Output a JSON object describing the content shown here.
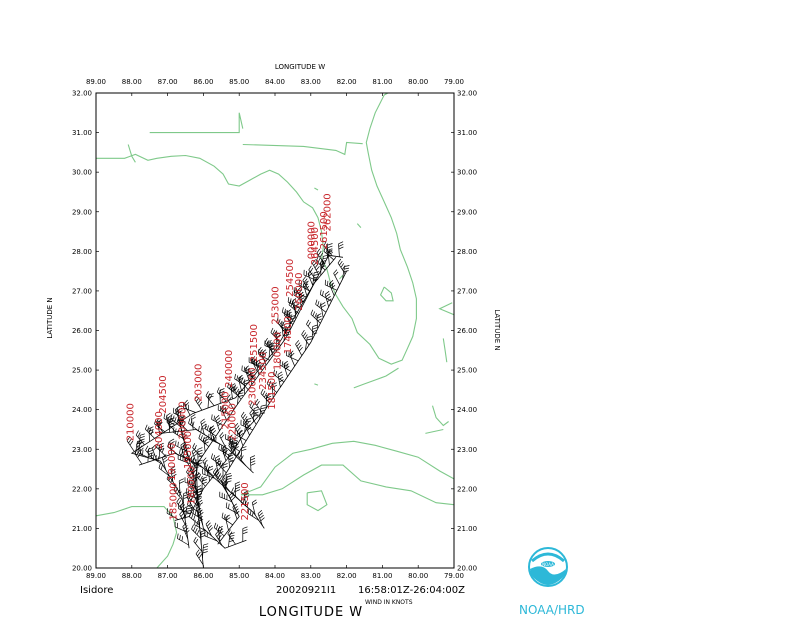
{
  "map": {
    "top_axis_title": "LONGITUDE   W",
    "bottom_axis_title": "LONGITUDE   W",
    "left_axis_title": "LATITUDE   N",
    "right_axis_title": "LATITUDE   N",
    "lon_ticks": [
      "89.00",
      "88.00",
      "87.00",
      "86.00",
      "85.00",
      "84.00",
      "83.00",
      "82.00",
      "81.00",
      "80.00",
      "79.00"
    ],
    "lat_ticks": [
      "32.00",
      "31.00",
      "30.00",
      "29.00",
      "28.00",
      "27.00",
      "26.00",
      "25.00",
      "24.00",
      "23.00",
      "22.00",
      "21.00",
      "20.00"
    ],
    "storm_name": "Isidore",
    "date": "20020921I1",
    "time_range": "16:58:01Z-26:04:00Z",
    "units_note": "WIND IN KNOTS",
    "organization": "NOAA/HRD",
    "extent": {
      "lon_min": -89,
      "lon_max": -79,
      "lat_min": 20,
      "lat_max": 32
    },
    "colors": {
      "coast": "#7fc98a",
      "labels": "#c8262b",
      "logo": "#2db8d8"
    }
  },
  "time_labels": [
    {
      "text": "210000",
      "lon": -87.95,
      "lat": 23.2
    },
    {
      "text": "204500",
      "lon": -87.05,
      "lat": 23.9
    },
    {
      "text": "204000",
      "lon": -87.15,
      "lat": 23.0
    },
    {
      "text": "203000",
      "lon": -86.05,
      "lat": 24.2
    },
    {
      "text": "200000",
      "lon": -86.5,
      "lat": 23.25
    },
    {
      "text": "195000",
      "lon": -86.35,
      "lat": 22.5
    },
    {
      "text": "190000",
      "lon": -86.8,
      "lat": 22.2
    },
    {
      "text": "185000",
      "lon": -86.75,
      "lat": 21.2
    },
    {
      "text": "180000",
      "lon": -86.25,
      "lat": 21.6
    },
    {
      "text": "215000",
      "lon": -85.3,
      "lat": 23.5
    },
    {
      "text": "220000",
      "lon": -85.1,
      "lat": 23.2
    },
    {
      "text": "221500",
      "lon": -84.75,
      "lat": 21.2
    },
    {
      "text": "230000",
      "lon": -84.55,
      "lat": 24.1
    },
    {
      "text": "234500",
      "lon": -84.25,
      "lat": 24.5
    },
    {
      "text": "240000",
      "lon": -85.2,
      "lat": 24.55
    },
    {
      "text": "251500",
      "lon": -84.5,
      "lat": 25.2
    },
    {
      "text": "253000",
      "lon": -83.9,
      "lat": 26.15
    },
    {
      "text": "254500",
      "lon": -83.5,
      "lat": 26.85
    },
    {
      "text": "260000",
      "lon": -83.25,
      "lat": 26.5
    },
    {
      "text": "264500",
      "lon": -82.8,
      "lat": 27.65
    },
    {
      "text": "261500",
      "lon": -82.55,
      "lat": 28.05
    },
    {
      "text": "262000",
      "lon": -82.45,
      "lat": 28.5
    },
    {
      "text": "000000",
      "lon": -82.9,
      "lat": 27.8
    },
    {
      "text": "174500",
      "lon": -83.55,
      "lat": 25.4
    },
    {
      "text": "180000",
      "lon": -83.85,
      "lat": 25.0
    },
    {
      "text": "181500",
      "lon": -84.0,
      "lat": 24.0
    }
  ],
  "tracks": [
    {
      "points": [
        [
          -86.0,
          20.0
        ],
        [
          -86.15,
          21.5
        ],
        [
          -86.2,
          22.6
        ],
        [
          -85.0,
          24.2
        ],
        [
          -83.7,
          25.8
        ],
        [
          -82.5,
          27.9
        ],
        [
          -82.1,
          27.85
        ]
      ]
    },
    {
      "points": [
        [
          -86.4,
          20.5
        ],
        [
          -86.6,
          21.8
        ],
        [
          -87.2,
          22.7
        ],
        [
          -88.0,
          22.9
        ],
        [
          -86.3,
          23.9
        ],
        [
          -85.1,
          24.3
        ],
        [
          -84.0,
          25.5
        ],
        [
          -82.9,
          27.2
        ],
        [
          -82.3,
          27.85
        ]
      ]
    },
    {
      "points": [
        [
          -85.6,
          20.6
        ],
        [
          -85.0,
          21.3
        ],
        [
          -85.5,
          22.2
        ],
        [
          -84.2,
          24.1
        ],
        [
          -83.0,
          25.7
        ],
        [
          -82.0,
          27.5
        ]
      ]
    },
    {
      "points": [
        [
          -87.8,
          22.6
        ],
        [
          -86.8,
          22.9
        ],
        [
          -86.1,
          22.6
        ],
        [
          -85.6,
          22.2
        ],
        [
          -84.6,
          21.4
        ],
        [
          -84.3,
          21.0
        ]
      ]
    },
    {
      "points": [
        [
          -86.8,
          21.2
        ],
        [
          -86.4,
          21.3
        ],
        [
          -86.0,
          22.0
        ],
        [
          -85.2,
          22.9
        ],
        [
          -84.8,
          23.5
        ],
        [
          -84.4,
          23.9
        ]
      ]
    },
    {
      "points": [
        [
          -86.7,
          23.8
        ],
        [
          -86.3,
          22.4
        ],
        [
          -86.0,
          21.0
        ],
        [
          -85.4,
          20.5
        ],
        [
          -84.8,
          20.7
        ]
      ]
    },
    {
      "points": [
        [
          -87.2,
          23.4
        ],
        [
          -86.2,
          23.5
        ],
        [
          -85.3,
          23.0
        ],
        [
          -84.6,
          22.4
        ]
      ]
    }
  ],
  "coastlines": [
    {
      "name": "gulf-coast",
      "points": [
        [
          -89,
          30.35
        ],
        [
          -88.6,
          30.35
        ],
        [
          -88.2,
          30.35
        ],
        [
          -87.9,
          30.45
        ],
        [
          -87.55,
          30.3
        ],
        [
          -87.3,
          30.35
        ],
        [
          -86.9,
          30.4
        ],
        [
          -86.5,
          30.42
        ],
        [
          -86.1,
          30.35
        ],
        [
          -85.7,
          30.15
        ],
        [
          -85.45,
          29.95
        ],
        [
          -85.3,
          29.7
        ],
        [
          -85.0,
          29.65
        ],
        [
          -84.7,
          29.8
        ],
        [
          -84.4,
          29.95
        ],
        [
          -84.15,
          30.05
        ],
        [
          -83.9,
          29.95
        ],
        [
          -83.65,
          29.75
        ],
        [
          -83.4,
          29.5
        ],
        [
          -83.2,
          29.25
        ],
        [
          -82.95,
          29.1
        ],
        [
          -82.8,
          28.85
        ],
        [
          -82.7,
          28.5
        ],
        [
          -82.65,
          28.1
        ],
        [
          -82.7,
          27.8
        ],
        [
          -82.55,
          27.55
        ],
        [
          -82.45,
          27.2
        ],
        [
          -82.3,
          26.9
        ],
        [
          -82.1,
          26.6
        ],
        [
          -81.85,
          26.3
        ],
        [
          -81.7,
          25.95
        ],
        [
          -81.35,
          25.65
        ],
        [
          -81.1,
          25.3
        ],
        [
          -80.75,
          25.15
        ],
        [
          -80.45,
          25.25
        ],
        [
          -80.3,
          25.55
        ],
        [
          -80.15,
          25.85
        ],
        [
          -80.05,
          26.3
        ],
        [
          -80.05,
          26.8
        ],
        [
          -80.15,
          27.2
        ],
        [
          -80.3,
          27.6
        ],
        [
          -80.5,
          28.05
        ],
        [
          -80.6,
          28.45
        ],
        [
          -80.75,
          28.85
        ],
        [
          -80.95,
          29.25
        ],
        [
          -81.15,
          29.65
        ],
        [
          -81.3,
          30.05
        ],
        [
          -81.4,
          30.5
        ],
        [
          -81.45,
          30.75
        ],
        [
          -81.35,
          31.1
        ],
        [
          -81.2,
          31.5
        ],
        [
          -80.95,
          31.95
        ],
        [
          -80.85,
          32.0
        ]
      ]
    },
    {
      "name": "lake-okeechobee",
      "points": [
        [
          -80.95,
          27.1
        ],
        [
          -80.75,
          26.95
        ],
        [
          -80.7,
          26.75
        ],
        [
          -80.9,
          26.75
        ],
        [
          -81.05,
          26.9
        ],
        [
          -80.95,
          27.1
        ]
      ]
    },
    {
      "name": "state-border",
      "points": [
        [
          -87.5,
          31.0
        ],
        [
          -85.0,
          31.0
        ],
        [
          -85.0,
          31.5
        ],
        [
          -84.9,
          31.1
        ]
      ]
    },
    {
      "name": "ga-border",
      "points": [
        [
          -84.9,
          30.7
        ],
        [
          -83.2,
          30.65
        ],
        [
          -82.3,
          30.55
        ],
        [
          -82.05,
          30.45
        ],
        [
          -82.0,
          30.75
        ],
        [
          -81.55,
          30.72
        ]
      ]
    },
    {
      "name": "mobile-bay",
      "points": [
        [
          -88.1,
          30.7
        ],
        [
          -88.0,
          30.4
        ],
        [
          -87.9,
          30.25
        ]
      ]
    },
    {
      "name": "cuba",
      "points": [
        [
          -84.95,
          21.85
        ],
        [
          -84.4,
          22.05
        ],
        [
          -84.0,
          22.55
        ],
        [
          -83.5,
          22.9
        ],
        [
          -83.0,
          23.0
        ],
        [
          -82.4,
          23.15
        ],
        [
          -81.8,
          23.2
        ],
        [
          -81.2,
          23.1
        ],
        [
          -80.6,
          22.95
        ],
        [
          -80.0,
          22.8
        ],
        [
          -79.4,
          22.45
        ],
        [
          -79.0,
          22.25
        ],
        [
          -79,
          21.6
        ],
        [
          -79.5,
          21.65
        ],
        [
          -80.2,
          21.95
        ],
        [
          -80.9,
          22.05
        ],
        [
          -81.6,
          22.2
        ],
        [
          -82.1,
          22.6
        ],
        [
          -82.7,
          22.6
        ],
        [
          -83.2,
          22.35
        ],
        [
          -83.8,
          22.0
        ],
        [
          -84.35,
          21.85
        ],
        [
          -84.95,
          21.85
        ]
      ]
    },
    {
      "name": "isla-juventud",
      "points": [
        [
          -83.1,
          21.9
        ],
        [
          -82.7,
          21.95
        ],
        [
          -82.55,
          21.6
        ],
        [
          -82.8,
          21.45
        ],
        [
          -83.1,
          21.6
        ],
        [
          -83.1,
          21.9
        ]
      ]
    },
    {
      "name": "yucatan",
      "points": [
        [
          -89,
          21.32
        ],
        [
          -88.5,
          21.4
        ],
        [
          -88.0,
          21.55
        ],
        [
          -87.5,
          21.55
        ],
        [
          -87.1,
          21.55
        ],
        [
          -86.85,
          21.3
        ],
        [
          -86.75,
          20.9
        ],
        [
          -86.85,
          20.6
        ],
        [
          -87.0,
          20.3
        ],
        [
          -87.3,
          20.0
        ]
      ]
    },
    {
      "name": "keys-1",
      "points": [
        [
          -81.8,
          24.55
        ],
        [
          -81.5,
          24.65
        ],
        [
          -81.2,
          24.75
        ],
        [
          -80.9,
          24.85
        ],
        [
          -80.55,
          25.05
        ]
      ]
    },
    {
      "name": "keys-2",
      "points": [
        [
          -82.9,
          24.65
        ],
        [
          -82.8,
          24.62
        ]
      ]
    },
    {
      "name": "bahamas-1",
      "points": [
        [
          -79.05,
          26.7
        ],
        [
          -79.4,
          26.55
        ],
        [
          -79.0,
          26.4
        ]
      ]
    },
    {
      "name": "bahamas-2",
      "points": [
        [
          -79.3,
          25.8
        ],
        [
          -79.25,
          25.5
        ],
        [
          -79.2,
          25.2
        ]
      ]
    },
    {
      "name": "bahamas-3",
      "points": [
        [
          -79.6,
          24.1
        ],
        [
          -79.5,
          23.8
        ],
        [
          -79.3,
          23.6
        ],
        [
          -79.15,
          23.7
        ]
      ]
    },
    {
      "name": "bahamas-4",
      "points": [
        [
          -79.8,
          23.4
        ],
        [
          -79.3,
          23.5
        ]
      ]
    },
    {
      "name": "coast-islet-1",
      "points": [
        [
          -82.1,
          27.4
        ],
        [
          -82.2,
          27.3
        ]
      ]
    },
    {
      "name": "coast-islet-2",
      "points": [
        [
          -81.7,
          28.7
        ],
        [
          -81.6,
          28.6
        ]
      ]
    },
    {
      "name": "coast-islet-3",
      "points": [
        [
          -82.9,
          29.6
        ],
        [
          -82.8,
          29.55
        ]
      ]
    }
  ]
}
